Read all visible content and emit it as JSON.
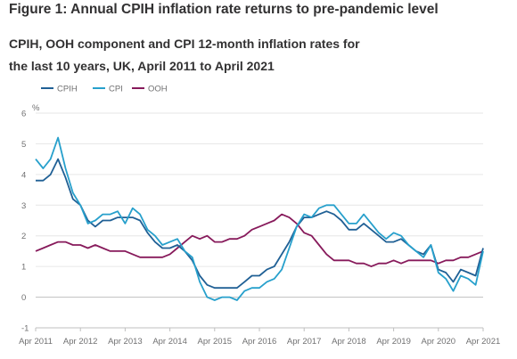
{
  "title": "Figure 1: Annual CPIH inflation rate returns to pre-pandemic level",
  "subtitle": "CPIH, OOH component and CPI 12-month inflation rates for the last 10 years, UK, April 2011 to April 2021",
  "chart_data": {
    "type": "line",
    "ylabel": "%",
    "ylim": [
      -1,
      6
    ],
    "yticks": [
      -1,
      0,
      1,
      2,
      3,
      4,
      5,
      6
    ],
    "xlim": [
      "2011-04",
      "2021-04"
    ],
    "xticks": [
      "Apr 2011",
      "Apr 2012",
      "Apr 2013",
      "Apr 2014",
      "Apr 2015",
      "Apr 2016",
      "Apr 2017",
      "Apr 2018",
      "Apr 2019",
      "Apr 2020",
      "Apr 2021"
    ],
    "grid": "horizontal",
    "legend_position": "top-left",
    "series_colors": {
      "CPIH": "#206095",
      "CPI": "#27a0cc",
      "OOH": "#871a5b"
    },
    "x": [
      "2011-04",
      "2011-06",
      "2011-08",
      "2011-10",
      "2011-12",
      "2012-02",
      "2012-04",
      "2012-06",
      "2012-08",
      "2012-10",
      "2012-12",
      "2013-02",
      "2013-04",
      "2013-06",
      "2013-08",
      "2013-10",
      "2013-12",
      "2014-02",
      "2014-04",
      "2014-06",
      "2014-08",
      "2014-10",
      "2014-12",
      "2015-02",
      "2015-04",
      "2015-06",
      "2015-08",
      "2015-10",
      "2015-12",
      "2016-02",
      "2016-04",
      "2016-06",
      "2016-08",
      "2016-10",
      "2016-12",
      "2017-02",
      "2017-04",
      "2017-06",
      "2017-08",
      "2017-10",
      "2017-12",
      "2018-02",
      "2018-04",
      "2018-06",
      "2018-08",
      "2018-10",
      "2018-12",
      "2019-02",
      "2019-04",
      "2019-06",
      "2019-08",
      "2019-10",
      "2019-12",
      "2020-02",
      "2020-04",
      "2020-06",
      "2020-08",
      "2020-10",
      "2020-12",
      "2021-02",
      "2021-04"
    ],
    "series": [
      {
        "name": "CPIH",
        "values": [
          3.8,
          3.8,
          4.0,
          4.5,
          3.9,
          3.2,
          3.0,
          2.5,
          2.3,
          2.5,
          2.5,
          2.6,
          2.6,
          2.6,
          2.5,
          2.1,
          1.8,
          1.6,
          1.6,
          1.7,
          1.5,
          1.2,
          0.7,
          0.4,
          0.3,
          0.3,
          0.3,
          0.3,
          0.5,
          0.7,
          0.7,
          0.9,
          1.0,
          1.4,
          1.8,
          2.3,
          2.6,
          2.6,
          2.7,
          2.8,
          2.7,
          2.5,
          2.2,
          2.2,
          2.4,
          2.2,
          2.0,
          1.8,
          1.8,
          1.9,
          1.7,
          1.5,
          1.4,
          1.7,
          0.9,
          0.8,
          0.5,
          0.9,
          0.8,
          0.7,
          1.6
        ]
      },
      {
        "name": "CPI",
        "values": [
          4.5,
          4.2,
          4.5,
          5.2,
          4.2,
          3.4,
          3.0,
          2.4,
          2.5,
          2.7,
          2.7,
          2.8,
          2.4,
          2.9,
          2.7,
          2.2,
          2.0,
          1.7,
          1.8,
          1.9,
          1.5,
          1.3,
          0.5,
          0.0,
          -0.1,
          0.0,
          0.0,
          -0.1,
          0.2,
          0.3,
          0.3,
          0.5,
          0.6,
          0.9,
          1.6,
          2.3,
          2.7,
          2.6,
          2.9,
          3.0,
          3.0,
          2.7,
          2.4,
          2.4,
          2.7,
          2.4,
          2.1,
          1.9,
          2.1,
          2.0,
          1.7,
          1.5,
          1.3,
          1.7,
          0.8,
          0.6,
          0.2,
          0.7,
          0.6,
          0.4,
          1.5
        ]
      },
      {
        "name": "OOH",
        "values": [
          1.5,
          1.6,
          1.7,
          1.8,
          1.8,
          1.7,
          1.7,
          1.6,
          1.7,
          1.6,
          1.5,
          1.5,
          1.5,
          1.4,
          1.3,
          1.3,
          1.3,
          1.3,
          1.4,
          1.6,
          1.8,
          2.0,
          1.9,
          2.0,
          1.8,
          1.8,
          1.9,
          1.9,
          2.0,
          2.2,
          2.3,
          2.4,
          2.5,
          2.7,
          2.6,
          2.4,
          2.1,
          2.0,
          1.7,
          1.4,
          1.2,
          1.2,
          1.2,
          1.1,
          1.1,
          1.0,
          1.1,
          1.1,
          1.2,
          1.1,
          1.2,
          1.2,
          1.2,
          1.2,
          1.1,
          1.2,
          1.2,
          1.3,
          1.3,
          1.4,
          1.5
        ]
      }
    ]
  }
}
